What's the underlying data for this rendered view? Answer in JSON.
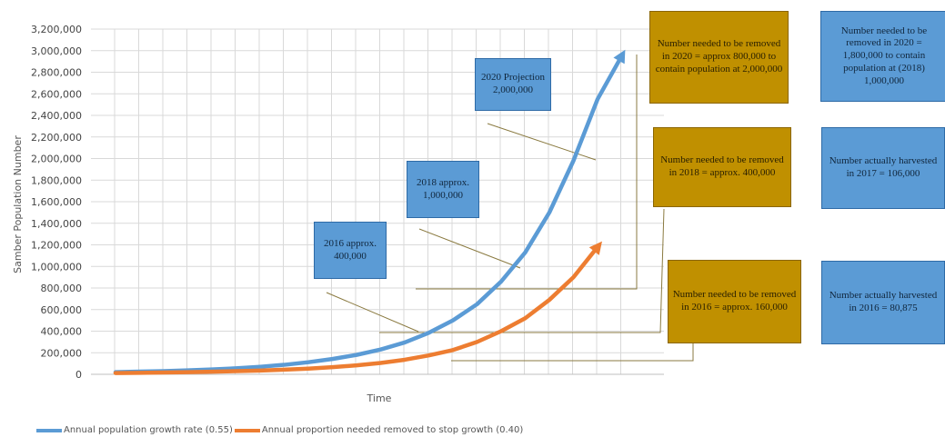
{
  "chart_data": {
    "type": "line",
    "xlabel": "Time",
    "ylabel": "Samber Population Number",
    "ylim": [
      0,
      3200000
    ],
    "y_ticks": [
      "0",
      "200,000",
      "400,000",
      "600,000",
      "800,000",
      "1,000,000",
      "1,200,000",
      "1,400,000",
      "1,600,000",
      "1,800,000",
      "2,000,000",
      "2,200,000",
      "2,400,000",
      "2,600,000",
      "2,800,000",
      "3,000,000",
      "3,200,000"
    ],
    "x_count": 22,
    "grid": true,
    "legend_position": "bottom-left",
    "series": [
      {
        "name": "Annual population growth rate (0.55)",
        "color": "#5b9bd5",
        "values": [
          20000,
          25000,
          30000,
          37000,
          45000,
          56000,
          70000,
          88000,
          112000,
          142000,
          180000,
          230000,
          295000,
          385000,
          500000,
          650000,
          860000,
          1130000,
          1500000,
          1980000,
          2550000,
          2950000
        ]
      },
      {
        "name": "Annual proportion needed removed to stop growth (0.40)",
        "color": "#ed7d31",
        "values": [
          12000,
          14000,
          17000,
          20000,
          24000,
          29000,
          35000,
          43000,
          53000,
          66000,
          83000,
          105000,
          135000,
          175000,
          225000,
          300000,
          400000,
          520000,
          690000,
          900000,
          1180000
        ]
      }
    ]
  },
  "annotations": {
    "blue_2020": "2020 Projection 2,000,000",
    "blue_2018": "2018 approx. 1,000,000",
    "blue_2016": "2016 approx. 400,000",
    "gold_2020": "Number needed to be removed in 2020 = approx 800,000 to contain population at 2,000,000",
    "gold_2018": "Number needed to be removed in 2018 = approx. 400,000",
    "gold_2016": "Number needed to be removed in 2016 = approx. 160,000",
    "right_2020": "Number needed to be removed in 2020 = 1,800,000 to contain population at (2018) 1,000,000",
    "right_2017": "Number actually harvested in 2017 = 106,000",
    "right_2016": "Number actually harvested in 2016 = 80,875"
  },
  "colors": {
    "blue_box": "#5b9bd5",
    "gold_box": "#c09000",
    "grid": "#d9d9d9"
  }
}
